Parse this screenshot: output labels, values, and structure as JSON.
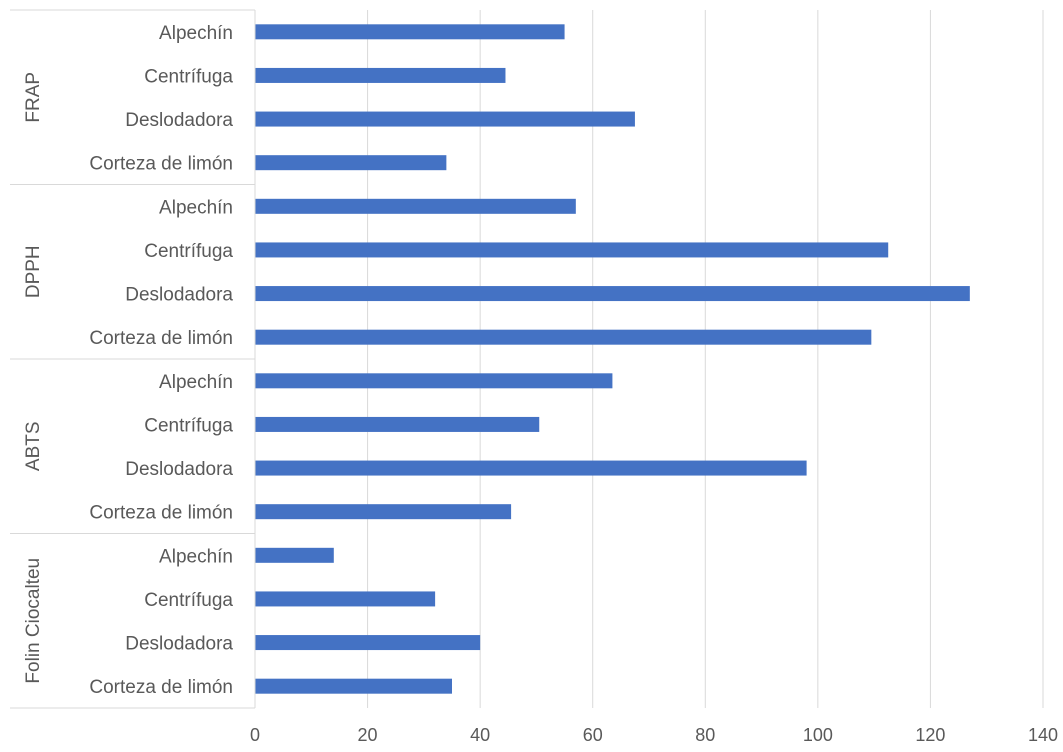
{
  "chart_data": {
    "type": "bar",
    "orientation": "horizontal",
    "color": "#4472C4",
    "grid": true,
    "xlim": [
      0,
      140
    ],
    "x_ticks": [
      "0",
      "20",
      "40",
      "60",
      "80",
      "100",
      "120",
      "140"
    ],
    "groups": [
      {
        "name": "FRAP",
        "categories": [
          "Alpechín",
          "Centrífuga",
          "Deslodadora",
          "Corteza de limón"
        ],
        "values": [
          55,
          44.5,
          67.5,
          34
        ]
      },
      {
        "name": "DPPH",
        "categories": [
          "Alpechín",
          "Centrífuga",
          "Deslodadora",
          "Corteza de limón"
        ],
        "values": [
          57,
          112.5,
          127,
          109.5
        ]
      },
      {
        "name": "ABTS",
        "categories": [
          "Alpechín",
          "Centrífuga",
          "Deslodadora",
          "Corteza de limón"
        ],
        "values": [
          63.5,
          50.5,
          98,
          45.5
        ]
      },
      {
        "name": "Folin Ciocalteu",
        "categories": [
          "Alpechín",
          "Centrífuga",
          "Deslodadora",
          "Corteza de limón"
        ],
        "values": [
          14,
          32,
          40,
          35
        ]
      }
    ]
  }
}
